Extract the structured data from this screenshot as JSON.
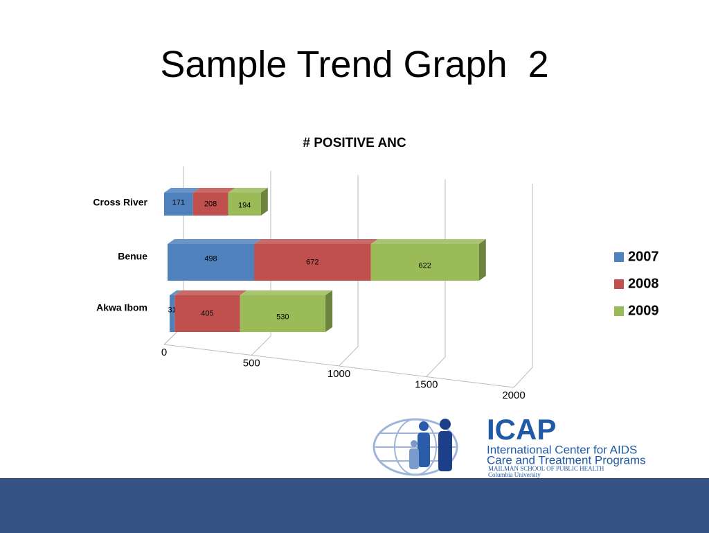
{
  "slide_title": "Sample Trend Graph  2",
  "chart_data": {
    "type": "bar",
    "orientation": "horizontal",
    "stacked": true,
    "title": "# POSITIVE ANC",
    "categories": [
      "Cross River",
      "Benue",
      "Akwa Ibom"
    ],
    "series": [
      {
        "name": "2007",
        "color": "#4f81bd",
        "values": [
          171,
          498,
          31
        ]
      },
      {
        "name": "2008",
        "color": "#c0504d",
        "values": [
          208,
          672,
          405
        ]
      },
      {
        "name": "2009",
        "color": "#9bbb59",
        "values": [
          194,
          622,
          530
        ]
      }
    ],
    "xlim": [
      0,
      2000
    ],
    "xticks": [
      0,
      500,
      1000,
      1500,
      2000
    ],
    "grid": true,
    "legend": "right"
  },
  "logo": {
    "name": "ICAP",
    "line1": "International Center for AIDS",
    "line2": "Care and Treatment Programs",
    "line3": "MAILMAN SCHOOL OF PUBLIC HEALTH",
    "line4": "Columbia University"
  }
}
